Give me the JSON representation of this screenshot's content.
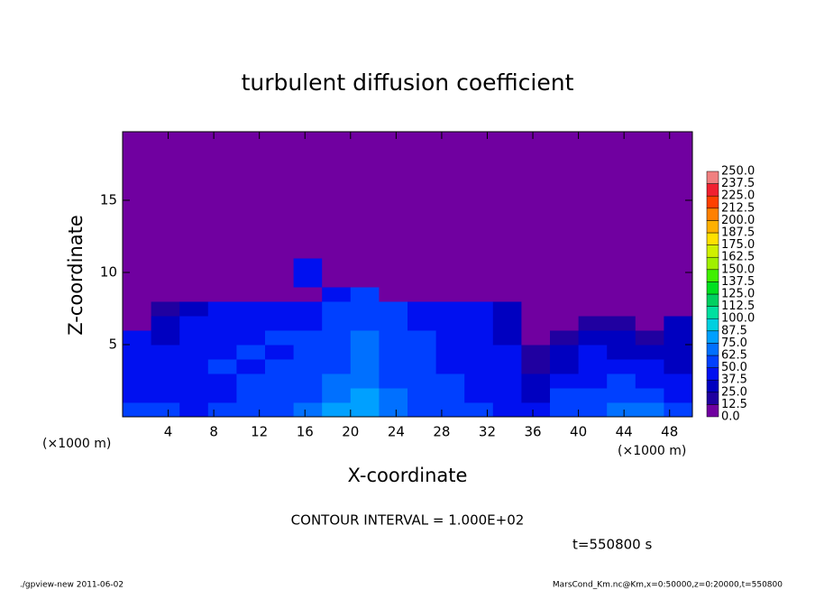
{
  "chart_data": {
    "type": "contour",
    "title": "turbulent diffusion coefficient",
    "x_label": "X-coordinate",
    "y_label": "Z-coordinate",
    "x_unit_left": "(×1000 m)",
    "x_unit_right": "(×1000 m)",
    "contour_note": "CONTOUR INTERVAL = 1.000E+02",
    "time_label": "t=550800 s",
    "footer_left": "./gpview-new   2011-06-02",
    "footer_right": "MarsCond_Km.nc@Km,x=0:50000,z=0:20000,t=550800",
    "xlim": [
      0,
      50
    ],
    "ylim": [
      0,
      19.75
    ],
    "xticks": [
      4,
      8,
      12,
      16,
      20,
      24,
      28,
      32,
      36,
      40,
      44,
      48
    ],
    "yticks": [
      5,
      10,
      15
    ],
    "x_edges": [
      0,
      2.5,
      5,
      7.5,
      10,
      12.5,
      15,
      17.5,
      20,
      22.5,
      25,
      27.5,
      30,
      32.5,
      35,
      37.5,
      40,
      42.5,
      45,
      47.5,
      50
    ],
    "y_edges": [
      0,
      1,
      2,
      3,
      4,
      5,
      6,
      7,
      8,
      9,
      11,
      19.75
    ],
    "values": [
      [
        55,
        50,
        45,
        50,
        55,
        60,
        65,
        75,
        80,
        70,
        60,
        55,
        50,
        45,
        40,
        55,
        60,
        65,
        70,
        55
      ],
      [
        45,
        45,
        40,
        45,
        50,
        55,
        60,
        70,
        75,
        65,
        55,
        50,
        45,
        40,
        30,
        50,
        55,
        60,
        55,
        45
      ],
      [
        40,
        45,
        45,
        45,
        50,
        50,
        55,
        65,
        70,
        60,
        55,
        50,
        45,
        40,
        25,
        40,
        45,
        50,
        45,
        40
      ],
      [
        40,
        40,
        45,
        50,
        45,
        50,
        55,
        60,
        70,
        55,
        50,
        45,
        45,
        40,
        20,
        35,
        40,
        45,
        40,
        35
      ],
      [
        45,
        40,
        45,
        45,
        50,
        45,
        50,
        60,
        65,
        55,
        50,
        45,
        45,
        40,
        15,
        30,
        40,
        35,
        30,
        30
      ],
      [
        40,
        35,
        40,
        45,
        45,
        50,
        50,
        55,
        65,
        50,
        50,
        45,
        40,
        35,
        10,
        15,
        30,
        25,
        20,
        30
      ],
      [
        5,
        30,
        40,
        40,
        45,
        45,
        45,
        55,
        60,
        50,
        45,
        45,
        40,
        35,
        5,
        5,
        20,
        15,
        10,
        25
      ],
      [
        5,
        20,
        35,
        40,
        40,
        40,
        45,
        50,
        60,
        50,
        45,
        40,
        40,
        30,
        5,
        5,
        5,
        5,
        5,
        5
      ],
      [
        5,
        5,
        5,
        5,
        5,
        5,
        5,
        40,
        55,
        5,
        5,
        5,
        5,
        5,
        5,
        5,
        5,
        5,
        5,
        5
      ],
      [
        5,
        5,
        5,
        5,
        5,
        5,
        45,
        5,
        5,
        5,
        5,
        5,
        5,
        5,
        5,
        5,
        5,
        5,
        5,
        5
      ],
      [
        5,
        5,
        5,
        5,
        5,
        5,
        5,
        5,
        5,
        5,
        5,
        5,
        5,
        5,
        5,
        5,
        5,
        5,
        5,
        5
      ]
    ],
    "levels": [
      {
        "value": 0,
        "label": "0.0"
      },
      {
        "value": 12.5,
        "label": "12.5"
      },
      {
        "value": 25,
        "label": "25.0"
      },
      {
        "value": 37.5,
        "label": "37.5"
      },
      {
        "value": 50,
        "label": "50.0"
      },
      {
        "value": 62.5,
        "label": "62.5"
      },
      {
        "value": 75,
        "label": "75.0"
      },
      {
        "value": 87.5,
        "label": "87.5"
      },
      {
        "value": 100,
        "label": "100.0"
      },
      {
        "value": 112.5,
        "label": "112.5"
      },
      {
        "value": 125,
        "label": "125.0"
      },
      {
        "value": 137.5,
        "label": "137.5"
      },
      {
        "value": 150,
        "label": "150.0"
      },
      {
        "value": 162.5,
        "label": "162.5"
      },
      {
        "value": 175,
        "label": "175.0"
      },
      {
        "value": 187.5,
        "label": "187.5"
      },
      {
        "value": 200,
        "label": "200.0"
      },
      {
        "value": 212.5,
        "label": "212.5"
      },
      {
        "value": 225,
        "label": "225.0"
      },
      {
        "value": 237.5,
        "label": "237.5"
      },
      {
        "value": 250,
        "label": "250.0"
      }
    ],
    "colors": [
      "#7000a0",
      "#2000a0",
      "#0000c0",
      "#0010f0",
      "#0040ff",
      "#0070ff",
      "#00a0ff",
      "#00d0e0",
      "#00e0a0",
      "#00d060",
      "#00e020",
      "#40f000",
      "#a0f000",
      "#d0f000",
      "#ffe000",
      "#ffb000",
      "#ff8000",
      "#ff4000",
      "#f02030",
      "#f08080"
    ]
  }
}
